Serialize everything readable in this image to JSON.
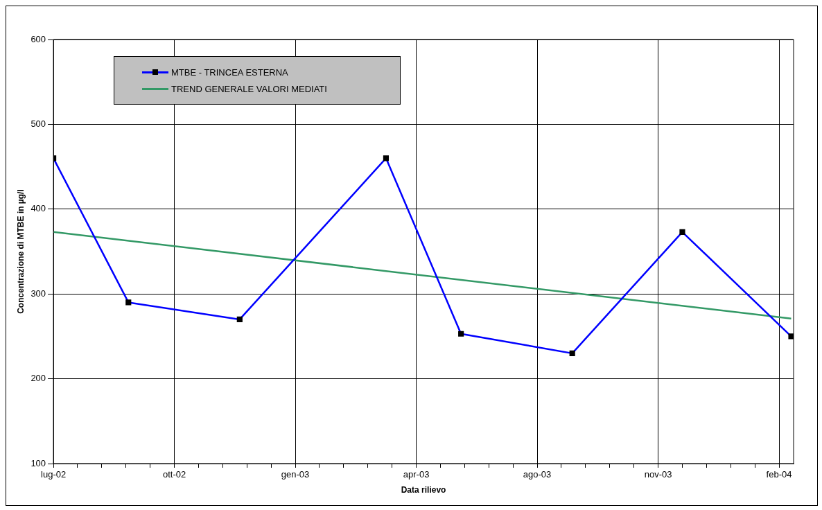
{
  "chart_data": {
    "type": "line",
    "xlabel": "Data rilievo",
    "ylabel": "Concentrazione di MTBE in µg/l",
    "x": [
      "2002-07-01",
      "2002-09-01",
      "2002-12-02",
      "2003-04-02",
      "2003-06-03",
      "2003-09-03",
      "2003-12-03",
      "2004-03-02"
    ],
    "series": [
      {
        "name": "MTBE - TRINCEA ESTERNA",
        "color": "#0000ff",
        "marker": "square",
        "values": [
          460,
          290,
          270,
          460,
          253,
          230,
          373,
          250
        ]
      },
      {
        "name": "TREND GENERALE VALORI MEDIATI",
        "color": "#339966",
        "marker": "none",
        "x": [
          "2002-07-01",
          "2004-03-02"
        ],
        "values": [
          373,
          271
        ]
      }
    ],
    "xlim": [
      "2002-07-01",
      "2004-03-04"
    ],
    "xticks": [
      {
        "value": "2002-07-01",
        "label": "lug-02"
      },
      {
        "value": "2002-07-21",
        "label": null
      },
      {
        "value": "2002-08-10",
        "label": null
      },
      {
        "value": "2002-08-30",
        "label": null
      },
      {
        "value": "2002-09-19",
        "label": null
      },
      {
        "value": "2002-10-09",
        "label": "ott-02"
      },
      {
        "value": "2002-10-29",
        "label": null
      },
      {
        "value": "2002-11-18",
        "label": null
      },
      {
        "value": "2002-12-08",
        "label": null
      },
      {
        "value": "2002-12-28",
        "label": null
      },
      {
        "value": "2003-01-17",
        "label": "gen-03"
      },
      {
        "value": "2003-02-06",
        "label": null
      },
      {
        "value": "2003-02-26",
        "label": null
      },
      {
        "value": "2003-03-18",
        "label": null
      },
      {
        "value": "2003-04-07",
        "label": null
      },
      {
        "value": "2003-04-27",
        "label": "apr-03"
      },
      {
        "value": "2003-05-17",
        "label": null
      },
      {
        "value": "2003-06-06",
        "label": null
      },
      {
        "value": "2003-06-26",
        "label": null
      },
      {
        "value": "2003-07-16",
        "label": null
      },
      {
        "value": "2003-08-05",
        "label": "ago-03"
      },
      {
        "value": "2003-08-25",
        "label": null
      },
      {
        "value": "2003-09-14",
        "label": null
      },
      {
        "value": "2003-10-04",
        "label": null
      },
      {
        "value": "2003-10-24",
        "label": null
      },
      {
        "value": "2003-11-13",
        "label": "nov-03"
      },
      {
        "value": "2003-12-03",
        "label": null
      },
      {
        "value": "2003-12-23",
        "label": null
      },
      {
        "value": "2004-01-12",
        "label": null
      },
      {
        "value": "2004-02-01",
        "label": null
      },
      {
        "value": "2004-02-21",
        "label": "feb-04"
      }
    ],
    "ylim": [
      100,
      600
    ],
    "yticks": [
      100,
      200,
      300,
      400,
      500,
      600
    ],
    "grid": true,
    "legend": "top left",
    "line_style": "solid"
  }
}
